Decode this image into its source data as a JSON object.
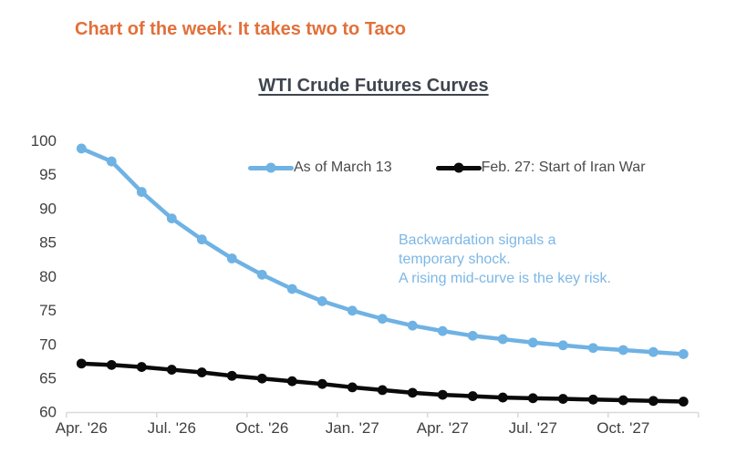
{
  "header": {
    "title": "Chart of the week: It takes two to Taco",
    "title_color": "#E2703A"
  },
  "annotation": {
    "color": "#7DB7E6",
    "lines": [
      "Backwardation signals a",
      "temporary shock.",
      "A rising mid-curve is the key risk."
    ]
  },
  "chart_data": {
    "type": "line",
    "title": "WTI Crude Futures Curves",
    "categories": [
      "Apr '26",
      "May '26",
      "Jun '26",
      "Jul '26",
      "Aug '26",
      "Sep '26",
      "Oct '26",
      "Nov '26",
      "Dec '26",
      "Jan '27",
      "Feb '27",
      "Mar '27",
      "Apr '27",
      "May '27",
      "Jun '27",
      "Jul '27",
      "Aug '27",
      "Sep '27",
      "Oct '27",
      "Nov '27",
      "Dec '27"
    ],
    "xticks": {
      "indices": [
        0,
        3,
        6,
        9,
        12,
        15,
        18
      ],
      "labels": [
        "Apr. '26",
        "Jul. '26",
        "Oct. '26",
        "Jan. '27",
        "Apr. '27",
        "Jul. '27",
        "Oct. '27"
      ]
    },
    "yticks": [
      60,
      65,
      70,
      75,
      80,
      85,
      90,
      95,
      100
    ],
    "ylim": [
      60,
      100
    ],
    "grid": false,
    "legend_position": "top-center",
    "axis_color": "#D9D9D9",
    "tick_label_color": "#404040",
    "series": [
      {
        "name": "As of March 13",
        "color": "#6FB2E4",
        "values": [
          98.8,
          96.9,
          92.4,
          88.5,
          85.4,
          82.6,
          80.2,
          78.1,
          76.3,
          74.9,
          73.7,
          72.7,
          71.9,
          71.2,
          70.7,
          70.2,
          69.8,
          69.4,
          69.1,
          68.8,
          68.5
        ]
      },
      {
        "name": "Feb. 27: Start of Iran War",
        "color": "#0A0A0A",
        "values": [
          67.1,
          66.9,
          66.6,
          66.2,
          65.8,
          65.3,
          64.9,
          64.5,
          64.1,
          63.6,
          63.2,
          62.8,
          62.5,
          62.3,
          62.1,
          62.0,
          61.9,
          61.8,
          61.7,
          61.6,
          61.5
        ]
      }
    ]
  }
}
